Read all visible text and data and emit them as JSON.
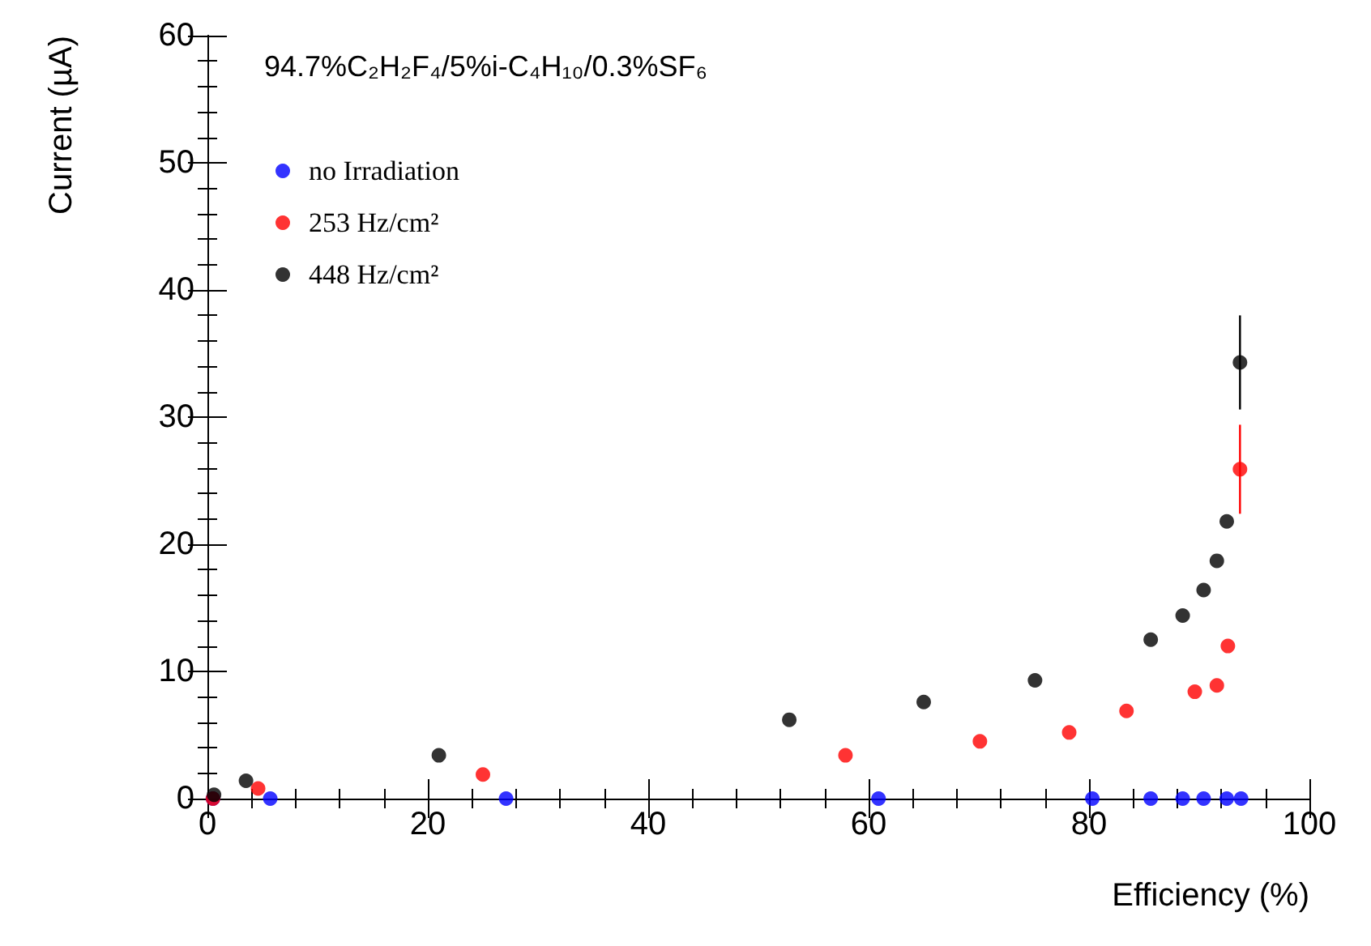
{
  "chart_data": {
    "type": "scatter",
    "xlabel": "Efficiency (%)",
    "ylabel": "Current (µA)",
    "annotations": [
      "94.7%C₂H₂F₄/5%i-C₄H₁₀/0.3%SF₆"
    ],
    "xlim": [
      0,
      100
    ],
    "xticks": [
      0,
      20,
      40,
      60,
      80,
      100
    ],
    "ylim": [
      0,
      60
    ],
    "yticks": [
      0,
      10,
      20,
      30,
      40,
      50,
      60
    ],
    "grid": false,
    "legend": "top left",
    "marker": "circle",
    "series": [
      {
        "name": "no Irradiation",
        "color": "#0000ff",
        "x": [
          0.5,
          5.7,
          27.1,
          60.9,
          80.3,
          85.6,
          88.5,
          90.4,
          92.5,
          93.8
        ],
        "values": [
          0,
          0,
          0,
          0,
          0,
          0,
          0,
          0,
          0,
          0
        ]
      },
      {
        "name": "253 Hz/cm²",
        "color": "#ff0000",
        "x": [
          0.5,
          4.6,
          25.0,
          57.9,
          70.1,
          78.2,
          83.4,
          89.6,
          91.6,
          92.6,
          93.7
        ],
        "values": [
          0,
          0.8,
          1.9,
          3.4,
          4.5,
          5.2,
          6.9,
          8.4,
          8.9,
          12.0,
          25.9
        ],
        "errors": [
          null,
          null,
          null,
          null,
          null,
          null,
          null,
          null,
          null,
          null,
          3.5
        ]
      },
      {
        "name": "448 Hz/cm²",
        "color": "#000000",
        "x": [
          0.6,
          3.5,
          21.0,
          52.8,
          65.0,
          75.1,
          85.6,
          88.5,
          90.4,
          91.6,
          92.5,
          93.7
        ],
        "values": [
          0.3,
          1.4,
          3.4,
          6.2,
          7.6,
          9.3,
          12.5,
          14.4,
          16.4,
          18.7,
          21.8,
          34.3
        ],
        "errors": [
          null,
          null,
          null,
          null,
          null,
          null,
          null,
          null,
          null,
          null,
          null,
          3.7
        ]
      }
    ]
  }
}
